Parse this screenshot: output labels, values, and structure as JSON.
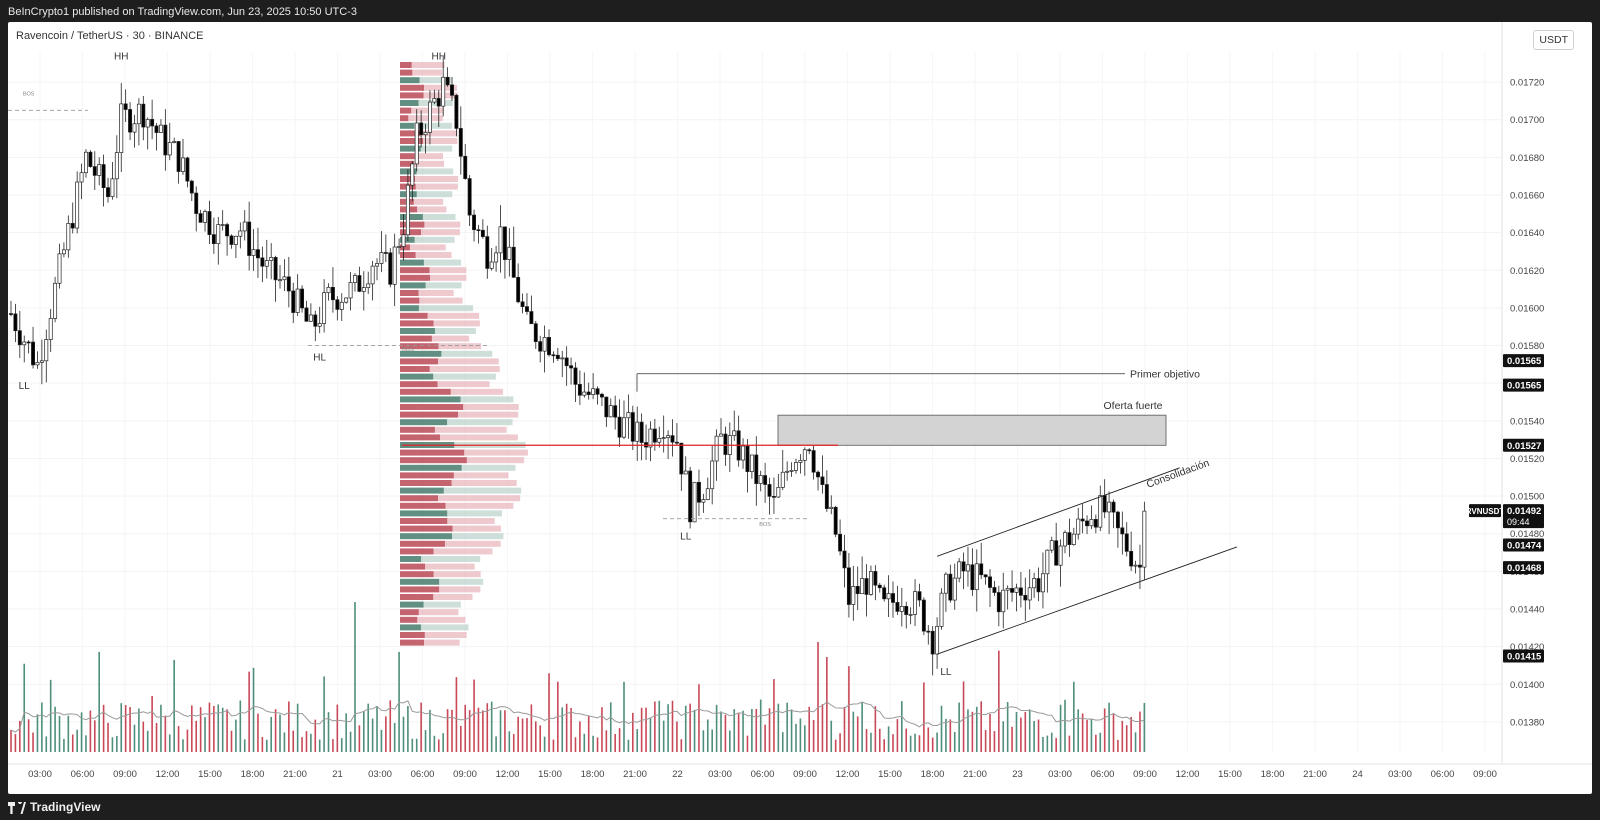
{
  "header": {
    "published": "BeInCrypto1 published on TradingView.com, Jun 23, 2025 10:50 UTC-3"
  },
  "symbol": {
    "title": "Ravencoin / TetherUS · 30 · BINANCE",
    "unit": "USDT",
    "ticker": "RVNUSDT",
    "countdown": "09:44"
  },
  "footer": {
    "brand": "TradingView"
  },
  "colors": {
    "up": "#ffffff",
    "down": "#000000",
    "vol_up": "#2f7a65",
    "vol_down": "#c0283a",
    "poc_line": "#e02020",
    "supply_zone": "#d3d3d3"
  },
  "chart_data": {
    "type": "candlestick",
    "ylim": [
      0.01364,
      0.01736
    ],
    "y_ticks": [
      0.0172,
      0.017,
      0.0168,
      0.0166,
      0.0164,
      0.0162,
      0.016,
      0.0158,
      0.0156,
      0.0154,
      0.0152,
      0.015,
      0.0148,
      0.0146,
      0.0144,
      0.0142,
      0.014,
      0.0138
    ],
    "x_ticks": [
      "03:00",
      "06:00",
      "09:00",
      "12:00",
      "15:00",
      "18:00",
      "21:00",
      "21",
      "03:00",
      "06:00",
      "09:00",
      "12:00",
      "15:00",
      "18:00",
      "21:00",
      "22",
      "03:00",
      "06:00",
      "09:00",
      "12:00",
      "15:00",
      "18:00",
      "21:00",
      "23",
      "03:00",
      "06:00",
      "09:00",
      "12:00",
      "15:00",
      "18:00",
      "21:00",
      "24",
      "03:00",
      "06:00",
      "09:00"
    ],
    "price_labels": [
      {
        "value": "0.01565",
        "y": 0.01572
      },
      {
        "value": "0.01565",
        "y": 0.01559
      },
      {
        "value": "0.01527",
        "y": 0.01527
      },
      {
        "value": "0.01492",
        "y": 0.01492,
        "ticker": true
      },
      {
        "value": "0.01474",
        "y": 0.01474
      },
      {
        "value": "0.01468",
        "y": 0.01462
      },
      {
        "value": "0.01415",
        "y": 0.01415
      }
    ],
    "anchors": [
      [
        0,
        0.01597
      ],
      [
        6,
        0.0157
      ],
      [
        12,
        0.0163
      ],
      [
        17,
        0.0168
      ],
      [
        22,
        0.0166
      ],
      [
        25,
        0.017
      ],
      [
        30,
        0.01705
      ],
      [
        34,
        0.0169
      ],
      [
        38,
        0.0168
      ],
      [
        42,
        0.01655
      ],
      [
        47,
        0.0164
      ],
      [
        52,
        0.01642
      ],
      [
        58,
        0.0162
      ],
      [
        63,
        0.0161
      ],
      [
        68,
        0.01588
      ],
      [
        72,
        0.01605
      ],
      [
        78,
        0.0161
      ],
      [
        82,
        0.01625
      ],
      [
        86,
        0.0162
      ],
      [
        89,
        0.01645
      ],
      [
        92,
        0.0169
      ],
      [
        95,
        0.01705
      ],
      [
        98,
        0.01718
      ],
      [
        101,
        0.017
      ],
      [
        104,
        0.0165
      ],
      [
        108,
        0.0163
      ],
      [
        111,
        0.0164
      ],
      [
        114,
        0.01615
      ],
      [
        117,
        0.0159
      ],
      [
        120,
        0.01585
      ],
      [
        124,
        0.0158
      ],
      [
        128,
        0.0156
      ],
      [
        133,
        0.0155
      ],
      [
        138,
        0.0154
      ],
      [
        143,
        0.0153
      ],
      [
        148,
        0.0154
      ],
      [
        151,
        0.0153
      ],
      [
        154,
        0.01495
      ],
      [
        157,
        0.01505
      ],
      [
        161,
        0.0153
      ],
      [
        165,
        0.01525
      ],
      [
        169,
        0.0151
      ],
      [
        173,
        0.01495
      ],
      [
        177,
        0.0152
      ],
      [
        181,
        0.0153
      ],
      [
        184,
        0.015
      ],
      [
        187,
        0.0148
      ],
      [
        190,
        0.01445
      ],
      [
        194,
        0.01455
      ],
      [
        198,
        0.0144
      ],
      [
        202,
        0.01448
      ],
      [
        206,
        0.0144
      ],
      [
        209,
        0.01425
      ],
      [
        212,
        0.0145
      ],
      [
        216,
        0.0146
      ],
      [
        220,
        0.01455
      ],
      [
        224,
        0.01445
      ],
      [
        228,
        0.0145
      ],
      [
        233,
        0.01455
      ],
      [
        237,
        0.01472
      ],
      [
        241,
        0.0148
      ],
      [
        245,
        0.01492
      ],
      [
        248,
        0.01492
      ],
      [
        251,
        0.0148
      ],
      [
        254,
        0.0147
      ],
      [
        256,
        0.01462
      ],
      [
        257,
        0.01492
      ]
    ],
    "volume_profile_note": "Visible-range volume profile overlaid at 21 03:00–06:00",
    "markers": [
      {
        "text": "HH",
        "x": 25,
        "y": 0.01732
      },
      {
        "text": "HH",
        "x": 97,
        "y": 0.01732
      },
      {
        "text": "LL",
        "x": 3,
        "y": 0.01557
      },
      {
        "text": "HL",
        "x": 70,
        "y": 0.01572
      },
      {
        "text": "LL",
        "x": 153,
        "y": 0.01477
      },
      {
        "text": "LL",
        "x": 212,
        "y": 0.01405
      },
      {
        "text": "BOS",
        "x": 4,
        "y": 0.01713
      },
      {
        "text": "BOS",
        "x": 90,
        "y": 0.01577
      },
      {
        "text": "BOS",
        "x": 171,
        "y": 0.01484
      }
    ],
    "annotations": {
      "target": "Primer objetivo",
      "supply": "Oferta fuerte",
      "channel": "Consolidación"
    },
    "levels": {
      "poc": 0.01527,
      "target": 0.01565,
      "supply_zone": [
        0.01527,
        0.01543
      ],
      "bos_left": 0.01705,
      "bos_mid": 0.0158,
      "bos_right": 0.01488
    },
    "channel": {
      "upper": [
        [
          210,
          0.01468
        ],
        [
          265,
          0.01515
        ]
      ],
      "lower": [
        [
          210,
          0.01416
        ],
        [
          278,
          0.01473
        ]
      ]
    }
  }
}
